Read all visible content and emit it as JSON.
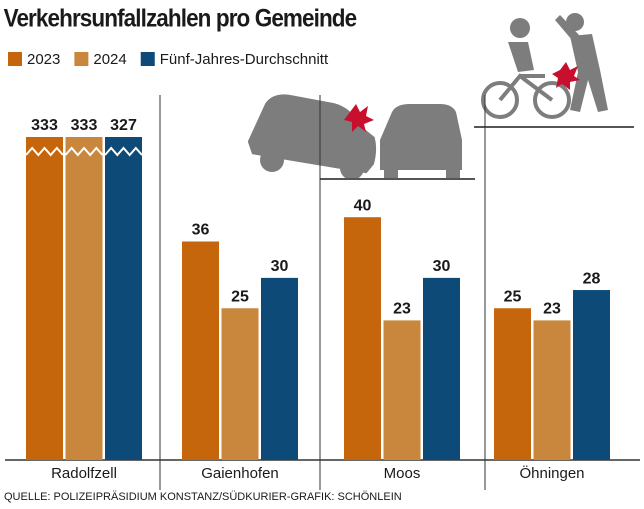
{
  "chart_data": {
    "type": "bar",
    "title": "Verkehrsunfallzahlen pro Gemeinde",
    "categories": [
      "Radolfzell",
      "Gaienhofen",
      "Moos",
      "Öhningen"
    ],
    "series": [
      {
        "name": "2023",
        "color": "#c5660c",
        "values": [
          333,
          36,
          40,
          25
        ]
      },
      {
        "name": "2024",
        "color": "#c8873d",
        "values": [
          333,
          25,
          23,
          23
        ]
      },
      {
        "name": "Fünf-Jahres-Durchschnitt",
        "color": "#0d4a78",
        "values": [
          327,
          30,
          30,
          28
        ]
      }
    ],
    "source": "QUELLE: POLIZEIPRÄSIDIUM KONSTANZ/SÜDKURIER-GRAFIK: SCHÖNLEIN"
  }
}
